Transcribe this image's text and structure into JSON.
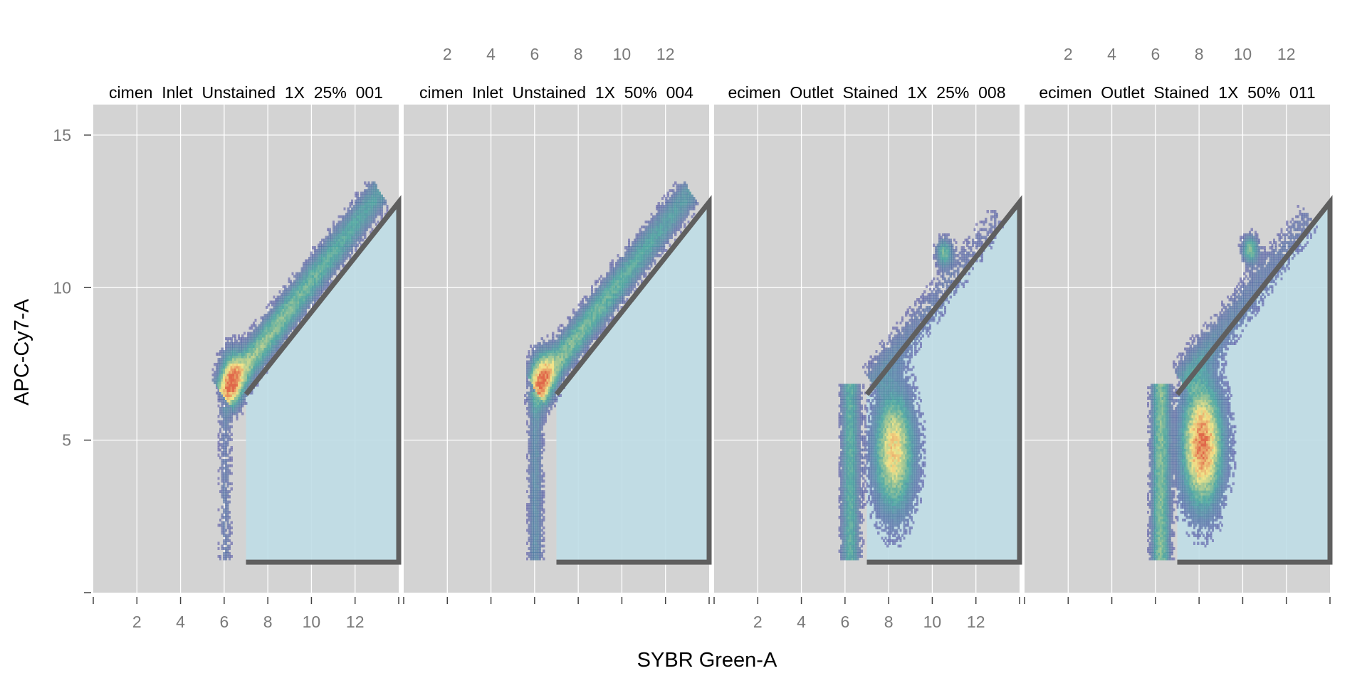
{
  "chart_data": {
    "type": "scatter",
    "subtype": "2d-density flow cytometry facets with polygon gate",
    "xlabel": "SYBR Green-A",
    "ylabel": "APC-Cy7-A",
    "xlim": [
      0,
      14
    ],
    "ylim": [
      0,
      16
    ],
    "x_ticks": [
      2,
      4,
      6,
      8,
      10,
      12
    ],
    "y_ticks": [
      5,
      10,
      15
    ],
    "grid": true,
    "colors": {
      "panel_background": "#d3d3d3",
      "grid": "#ffffff",
      "gate_fill": "#bfdde6",
      "gate_stroke": "#5f5f5f",
      "density_low": "#5b4ea8",
      "density_mid": "#4aa6a0",
      "density_high": "#f2e58a",
      "density_peak": "#e0684a"
    },
    "gate": {
      "vertices": [
        [
          7,
          1
        ],
        [
          14,
          1
        ],
        [
          14,
          12.8
        ],
        [
          7,
          6.5
        ]
      ]
    },
    "panels": [
      {
        "title": "cimen_Inlet_Unstained_1X_25%_001",
        "populations": [
          {
            "type": "diagonal",
            "x0": 5.9,
            "y0": 6.4,
            "x1": 13.1,
            "y1": 13.1,
            "width": 0.7,
            "peak": 0.55
          },
          {
            "type": "cluster",
            "x": 6.3,
            "y": 7.0,
            "sx": 0.35,
            "sy": 0.6,
            "peak": 0.55
          },
          {
            "type": "column",
            "x": 6.0,
            "y0": 1.0,
            "y1": 6.0,
            "width": 0.4,
            "peak": 0.12
          }
        ]
      },
      {
        "title": "cimen_Inlet_Unstained_1X_50%_004",
        "populations": [
          {
            "type": "diagonal",
            "x0": 6.0,
            "y0": 6.6,
            "x1": 13.1,
            "y1": 13.1,
            "width": 0.7,
            "peak": 0.5
          },
          {
            "type": "cluster",
            "x": 6.3,
            "y": 7.0,
            "sx": 0.35,
            "sy": 0.6,
            "peak": 0.55
          },
          {
            "type": "column",
            "x": 6.0,
            "y0": 1.0,
            "y1": 6.5,
            "width": 0.45,
            "peak": 0.2
          }
        ]
      },
      {
        "title": "ecimen_Outlet_Stained_1X_25%_008",
        "populations": [
          {
            "type": "cluster",
            "x": 8.2,
            "y": 4.6,
            "sx": 0.6,
            "sy": 1.3,
            "peak": 0.72
          },
          {
            "type": "column",
            "x": 6.2,
            "y0": 1.0,
            "y1": 6.8,
            "width": 0.55,
            "peak": 0.35
          },
          {
            "type": "diagonal",
            "x0": 7.2,
            "y0": 6.8,
            "x1": 13.0,
            "y1": 12.3,
            "width": 0.8,
            "peak": 0.15
          },
          {
            "type": "cluster",
            "x": 10.5,
            "y": 11.1,
            "sx": 0.25,
            "sy": 0.3,
            "peak": 0.4
          }
        ]
      },
      {
        "title": "ecimen_Outlet_Stained_1X_50%_011",
        "populations": [
          {
            "type": "cluster",
            "x": 8.1,
            "y": 4.8,
            "sx": 0.6,
            "sy": 1.3,
            "peak": 0.95
          },
          {
            "type": "column",
            "x": 6.2,
            "y0": 1.0,
            "y1": 6.8,
            "width": 0.55,
            "peak": 0.45
          },
          {
            "type": "diagonal",
            "x0": 7.2,
            "y0": 6.8,
            "x1": 13.0,
            "y1": 12.3,
            "width": 0.8,
            "peak": 0.2
          },
          {
            "type": "cluster",
            "x": 10.3,
            "y": 11.2,
            "sx": 0.25,
            "sy": 0.3,
            "peak": 0.45
          }
        ]
      }
    ]
  }
}
